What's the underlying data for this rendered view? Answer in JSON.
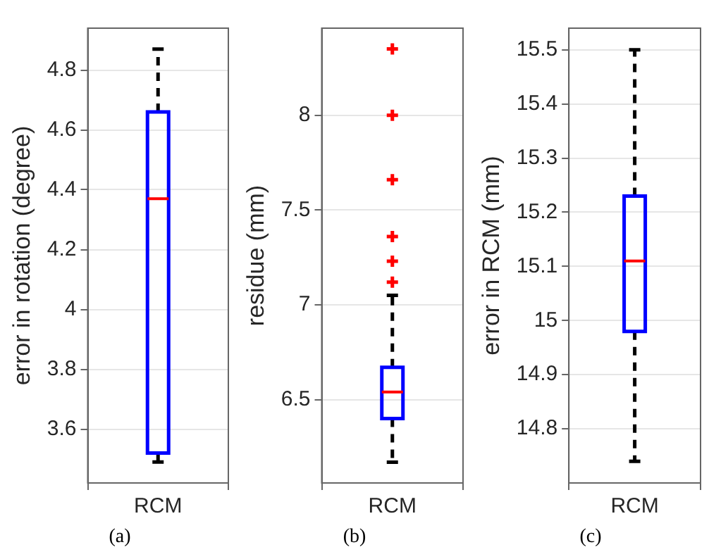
{
  "chart_data": [
    {
      "type": "box",
      "categories": [
        "RCM"
      ],
      "ylabel": "error in rotation (degree)",
      "color": "#0000ff",
      "ylim": [
        3.42,
        4.94
      ],
      "yticks": [
        3.6,
        3.8,
        4,
        4.2,
        4.4,
        4.6,
        4.8
      ],
      "grid": true,
      "annotations": [
        "(a)"
      ],
      "boxes": [
        {
          "low": 3.49,
          "q1": 3.52,
          "median": 4.37,
          "q3": 4.66,
          "high": 4.87
        }
      ]
    },
    {
      "type": "box",
      "categories": [
        "RCM"
      ],
      "ylabel": "residue (mm)",
      "color": "#0000ff",
      "ylim": [
        6.06,
        8.46
      ],
      "yticks": [
        6.5,
        7,
        7.5,
        8
      ],
      "grid": true,
      "marker": "cross",
      "annotations": [
        "(b)"
      ],
      "boxes": [
        {
          "low": 6.17,
          "q1": 6.4,
          "median": 6.54,
          "q3": 6.67,
          "high": 7.05,
          "outliers": [
            7.12,
            7.23,
            7.36,
            7.66,
            8.0,
            8.35
          ]
        }
      ]
    },
    {
      "type": "box",
      "categories": [
        "RCM"
      ],
      "ylabel": "error in RCM (mm)",
      "color": "#0000ff",
      "ylim": [
        14.7,
        15.54
      ],
      "yticks": [
        14.8,
        14.9,
        15,
        15.1,
        15.2,
        15.3,
        15.4,
        15.5
      ],
      "grid": true,
      "annotations": [
        "(c)"
      ],
      "boxes": [
        {
          "low": 14.74,
          "q1": 14.98,
          "median": 15.11,
          "q3": 15.23,
          "high": 15.5
        }
      ]
    }
  ]
}
